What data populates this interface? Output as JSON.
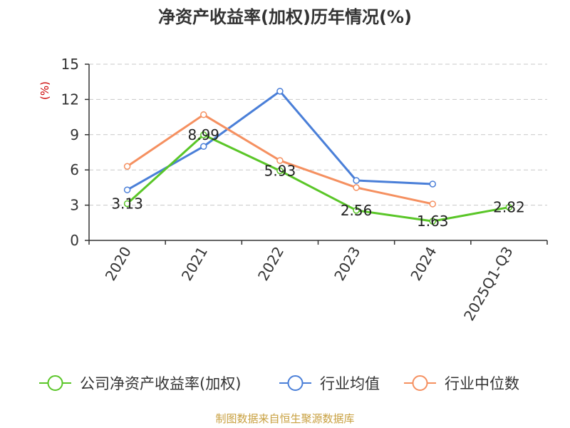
{
  "chart_data": {
    "type": "line",
    "title": "净资产收益率(加权)历年情况(%)",
    "ylabel": "(%)",
    "xlabel": "",
    "categories": [
      "2020",
      "2021",
      "2022",
      "2023",
      "2024",
      "2025Q1-Q3"
    ],
    "ylim": [
      0,
      15
    ],
    "yticks": [
      0,
      3,
      6,
      9,
      12,
      15
    ],
    "grid": true,
    "legend_position": "bottom",
    "series": [
      {
        "name": "公司净资产收益率(加权)",
        "color": "#5ac628",
        "values": [
          3.13,
          8.99,
          5.93,
          2.56,
          1.63,
          2.82
        ],
        "labels": [
          "3.13",
          "8.99",
          "5.93",
          "2.56",
          "1.63",
          "2.82"
        ]
      },
      {
        "name": "行业均值",
        "color": "#4a7fd8",
        "values": [
          4.3,
          8.0,
          12.7,
          5.1,
          4.8,
          null
        ]
      },
      {
        "name": "行业中位数",
        "color": "#f59060",
        "values": [
          6.3,
          10.7,
          6.8,
          4.5,
          3.1,
          null
        ]
      }
    ]
  },
  "footer": {
    "source": "制图数据来自恒生聚源数据库"
  }
}
